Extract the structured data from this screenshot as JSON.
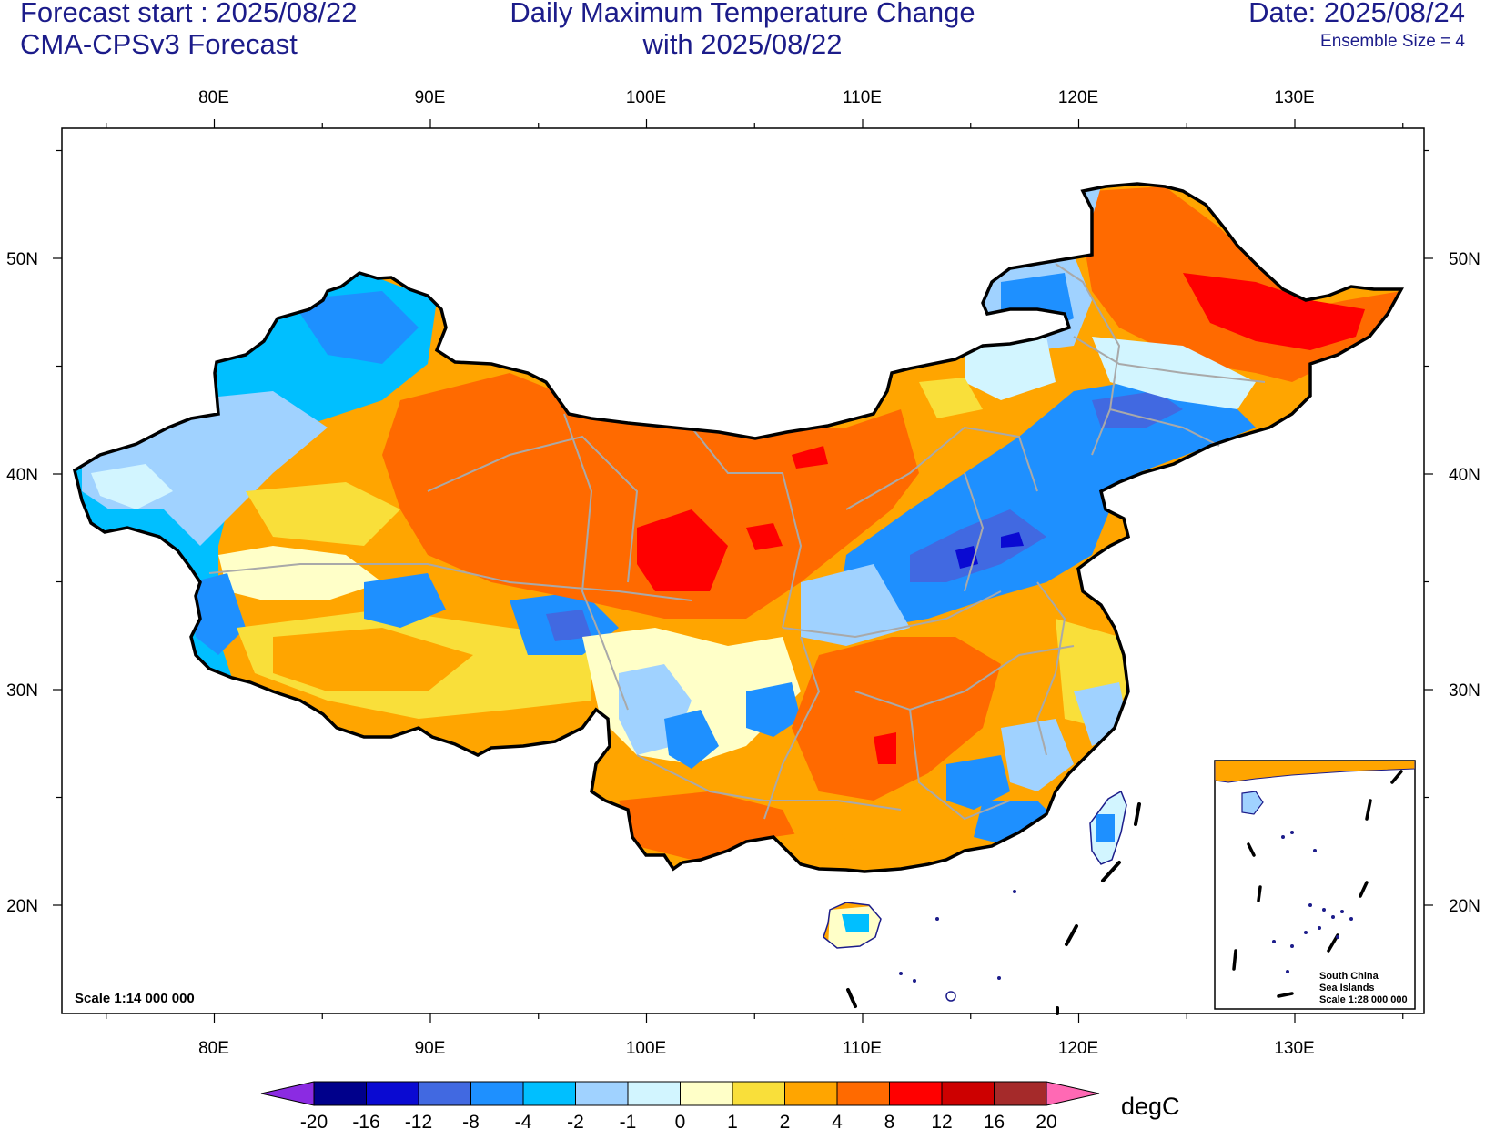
{
  "header": {
    "left_line1": "Forecast start : 2025/08/22",
    "left_line2": "CMA-CPSv3 Forecast",
    "title_line1": "Daily Maximum Temperature Change",
    "title_line2": "with 2025/08/22",
    "date": "Date: 2025/08/24",
    "ensemble": "Ensemble Size = 4"
  },
  "map": {
    "lon_ticks": [
      "80E",
      "90E",
      "100E",
      "110E",
      "120E",
      "130E"
    ],
    "lat_ticks": [
      "50N",
      "40N",
      "30N",
      "20N"
    ],
    "scale_label": "Scale 1:14 000 000",
    "inset": {
      "line1": "South China",
      "line2": "Sea Islands",
      "line3": "Scale 1:28 000 000"
    }
  },
  "colorbar": {
    "unit": "degC",
    "levels": [
      "-20",
      "-16",
      "-12",
      "-8",
      "-4",
      "-2",
      "-1",
      "0",
      "1",
      "2",
      "4",
      "8",
      "12",
      "16",
      "20"
    ],
    "colors": [
      "#8b2be2",
      "#00008b",
      "#0a0ad2",
      "#4169e1",
      "#1e90ff",
      "#00bfff",
      "#a0d2ff",
      "#d2f5ff",
      "#ffffc8",
      "#f9df3a",
      "#ffa500",
      "#ff6a00",
      "#ff0000",
      "#cd0000",
      "#a52a2a",
      "#ff69b4"
    ]
  }
}
